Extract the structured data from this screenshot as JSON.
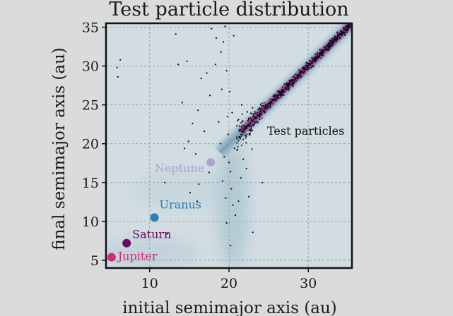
{
  "chart_data": {
    "type": "scatter",
    "title": "Test particle distribution",
    "xlabel": "initial semimajor axis (au)",
    "ylabel": "final semimajor axis (au)",
    "xlim": [
      4.5,
      35.5
    ],
    "ylim": [
      4,
      35.5
    ],
    "xticks": [
      10,
      20,
      30
    ],
    "yticks": [
      5,
      10,
      15,
      20,
      25,
      30,
      35
    ],
    "grid": true,
    "background_density": "diagonal band along initial = final from ~20 au outward, magenta core",
    "planets": [
      {
        "name": "Jupiter",
        "x": 5.2,
        "y": 5.4,
        "color": "#d6277a"
      },
      {
        "name": "Saturn",
        "x": 7.1,
        "y": 7.2,
        "color": "#6a0a5e"
      },
      {
        "name": "Uranus",
        "x": 10.6,
        "y": 10.5,
        "color": "#2a7fb5"
      },
      {
        "name": "Neptune",
        "x": 17.7,
        "y": 17.6,
        "color": "#a9a3cf"
      }
    ],
    "annotations": [
      {
        "text": "Test particles",
        "color": "#111111"
      }
    ],
    "scattered_particles": [
      [
        5.9,
        29.8
      ],
      [
        6.3,
        30.8
      ],
      [
        6.0,
        28.6
      ],
      [
        13.3,
        34.1
      ],
      [
        13.6,
        30.2
      ],
      [
        14.1,
        25.3
      ],
      [
        14.7,
        30.6
      ],
      [
        14.4,
        19.4
      ],
      [
        14.9,
        20.3
      ],
      [
        15.4,
        22.6
      ],
      [
        15.8,
        18.7
      ],
      [
        16.1,
        24.3
      ],
      [
        16.5,
        28.4
      ],
      [
        16.9,
        21.6
      ],
      [
        15.1,
        13.7
      ],
      [
        16.2,
        14.8
      ],
      [
        17.8,
        34.8
      ],
      [
        17.2,
        29.1
      ],
      [
        18.3,
        30.2
      ],
      [
        17.6,
        26.2
      ],
      [
        18.7,
        22.8
      ],
      [
        11.9,
        15.0
      ],
      [
        12.2,
        8.4
      ],
      [
        18.4,
        33.6
      ],
      [
        19.0,
        31.8
      ],
      [
        19.3,
        33.1
      ],
      [
        19.7,
        29.4
      ],
      [
        19.1,
        27.0
      ],
      [
        19.8,
        23.5
      ],
      [
        20.1,
        26.7
      ],
      [
        18.9,
        20.0
      ],
      [
        19.4,
        18.3
      ],
      [
        19.9,
        21.2
      ],
      [
        20.2,
        16.4
      ],
      [
        19.2,
        15.2
      ],
      [
        20.3,
        14.2
      ],
      [
        19.6,
        13.0
      ],
      [
        20.5,
        12.1
      ],
      [
        20.0,
        17.6
      ],
      [
        20.7,
        19.4
      ],
      [
        20.4,
        24.0
      ],
      [
        21.0,
        22.3
      ],
      [
        19.5,
        35.1
      ],
      [
        20.6,
        33.9
      ],
      [
        21.3,
        20.8
      ],
      [
        21.8,
        18.0
      ],
      [
        22.2,
        16.8
      ],
      [
        21.5,
        15.6
      ],
      [
        22.5,
        13.2
      ],
      [
        21.2,
        12.6
      ],
      [
        22.9,
        19.3
      ],
      [
        22.0,
        21.9
      ],
      [
        23.0,
        8.6
      ],
      [
        24.2,
        15.0
      ],
      [
        20.8,
        10.8
      ],
      [
        20.2,
        6.9
      ],
      [
        19.7,
        9.8
      ],
      [
        21.6,
        25.0
      ],
      [
        22.3,
        24.1
      ],
      [
        22.7,
        23.3
      ],
      [
        17.5,
        16.3
      ],
      [
        16.0,
        12.6
      ]
    ]
  }
}
